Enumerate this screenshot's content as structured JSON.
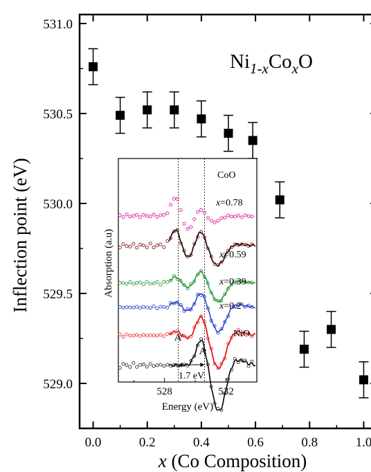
{
  "chart_data": [
    {
      "type": "scatter",
      "title": "Ni1-xCoxO",
      "title_parts": {
        "base1": "Ni",
        "sub1": "1-x",
        "base2": "Co",
        "sub2": "x",
        "base3": "O"
      },
      "xlabel": "x (Co Composition)",
      "xlabel_parts": {
        "var": "x",
        "rest": " (Co Composition)"
      },
      "ylabel": "Inflection point (eV)",
      "xlim": [
        -0.05,
        1.05
      ],
      "ylim": [
        528.75,
        531.05
      ],
      "xticks": [
        "0.0",
        "0.2",
        "0.4",
        "0.6",
        "0.8",
        "1.0"
      ],
      "yticks": [
        "529.0",
        "529.5",
        "530.0",
        "530.5",
        "531.0"
      ],
      "points": [
        {
          "x": 0.0,
          "y": 530.76,
          "err": 0.1
        },
        {
          "x": 0.1,
          "y": 530.49,
          "err": 0.1
        },
        {
          "x": 0.2,
          "y": 530.52,
          "err": 0.1
        },
        {
          "x": 0.3,
          "y": 530.52,
          "err": 0.1
        },
        {
          "x": 0.4,
          "y": 530.47,
          "err": 0.1
        },
        {
          "x": 0.5,
          "y": 530.39,
          "err": 0.1
        },
        {
          "x": 0.59,
          "y": 530.35,
          "err": 0.1
        },
        {
          "x": 0.69,
          "y": 530.02,
          "err": 0.1
        },
        {
          "x": 0.78,
          "y": 529.19,
          "err": 0.1
        },
        {
          "x": 0.88,
          "y": 529.3,
          "err": 0.1
        },
        {
          "x": 1.0,
          "y": 529.02,
          "err": 0.1
        }
      ],
      "marker": "filled-square",
      "color": "#000000"
    },
    {
      "type": "line",
      "role": "inset",
      "xlabel": "Energy (eV)",
      "ylabel": "Absorption (a.u)",
      "xlim": [
        525.0,
        534.0
      ],
      "xticks": [
        "528",
        "532"
      ],
      "reference_lines": [
        {
          "label": "A'",
          "x": 528.9
        },
        {
          "label": "A",
          "x": 530.6
        }
      ],
      "annotation": "1.7 eV",
      "series": [
        {
          "name": "CoO",
          "color": "#d81b9a",
          "offset": 8.6,
          "amp": 0.9,
          "ratio": 1.2
        },
        {
          "name": "x=0.78",
          "color": "#8b1a1a",
          "fit_color": "#000000",
          "offset": 7.0,
          "amp": 1.4,
          "ratio": 0.65
        },
        {
          "name": "x=0.59",
          "color": "#2e9a3a",
          "fit_color": "#2e9a3a",
          "offset": 5.0,
          "amp": 1.0,
          "ratio": 0.35
        },
        {
          "name": "x=0.39",
          "color": "#2f49c8",
          "fit_color": "#2f49c8",
          "offset": 3.7,
          "amp": 1.2,
          "ratio": 0.25
        },
        {
          "name": "x=0.2",
          "color": "#e84040",
          "fit_color": "#e00000",
          "offset": 2.2,
          "amp": 1.5,
          "ratio": 0.15
        },
        {
          "name": "NiO",
          "color": "#333333",
          "fit_color": "#000000",
          "offset": 0.6,
          "amp": 1.9,
          "ratio": 0.0
        }
      ]
    }
  ]
}
